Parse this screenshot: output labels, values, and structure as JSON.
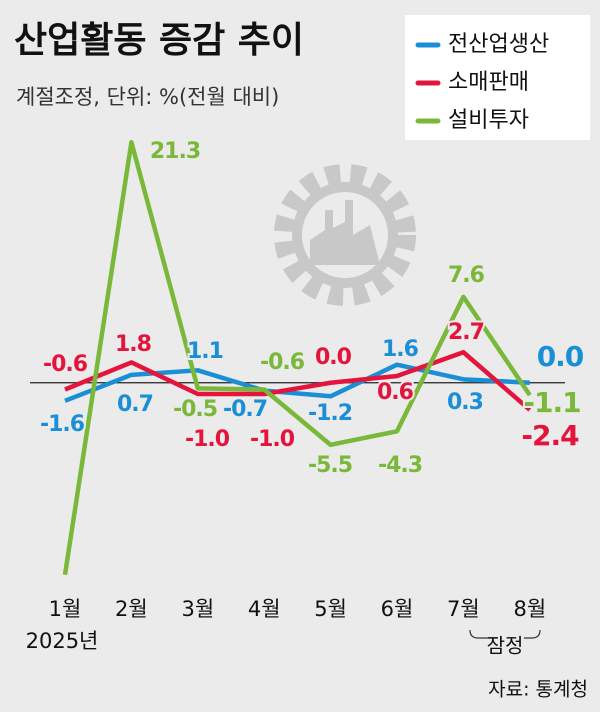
{
  "chart_data": {
    "type": "line",
    "title": "산업활동 증감 추이",
    "subtitle": "계절조정, 단위: %(전월 대비)",
    "categories": [
      "1월",
      "2월",
      "3월",
      "4월",
      "5월",
      "6월",
      "7월",
      "8월"
    ],
    "year_label": "2025년",
    "provisional_label": "잠정",
    "source": "자료: 통계청",
    "ylim": [
      -18,
      23
    ],
    "series": [
      {
        "name": "전산업생산",
        "color": "#1a8fd6",
        "values": [
          -1.6,
          0.7,
          1.1,
          -0.7,
          -1.2,
          1.6,
          0.3,
          0
        ],
        "value_labels": [
          "-1.6",
          "0.7",
          "1.1",
          "-0.7",
          "-1.2",
          "1.6",
          "0.3",
          "0.0"
        ]
      },
      {
        "name": "소매판매",
        "color": "#e3153c",
        "values": [
          -0.6,
          1.8,
          -1.0,
          -1.0,
          0,
          0.6,
          2.7,
          -2.4
        ],
        "value_labels": [
          "-0.6",
          "1.8",
          "-1.0",
          "-1.0",
          "0.0",
          "0.6",
          "2.7",
          "-2.4"
        ]
      },
      {
        "name": "설비투자",
        "color": "#7ab83a",
        "values": [
          -17,
          21.3,
          -0.5,
          -0.6,
          -5.5,
          -4.3,
          7.6,
          -1.1
        ],
        "value_labels": [
          null,
          "21.3",
          "-0.5",
          "-0.6",
          "-5.5",
          "-4.3",
          "7.6",
          "-1.1"
        ]
      }
    ]
  }
}
